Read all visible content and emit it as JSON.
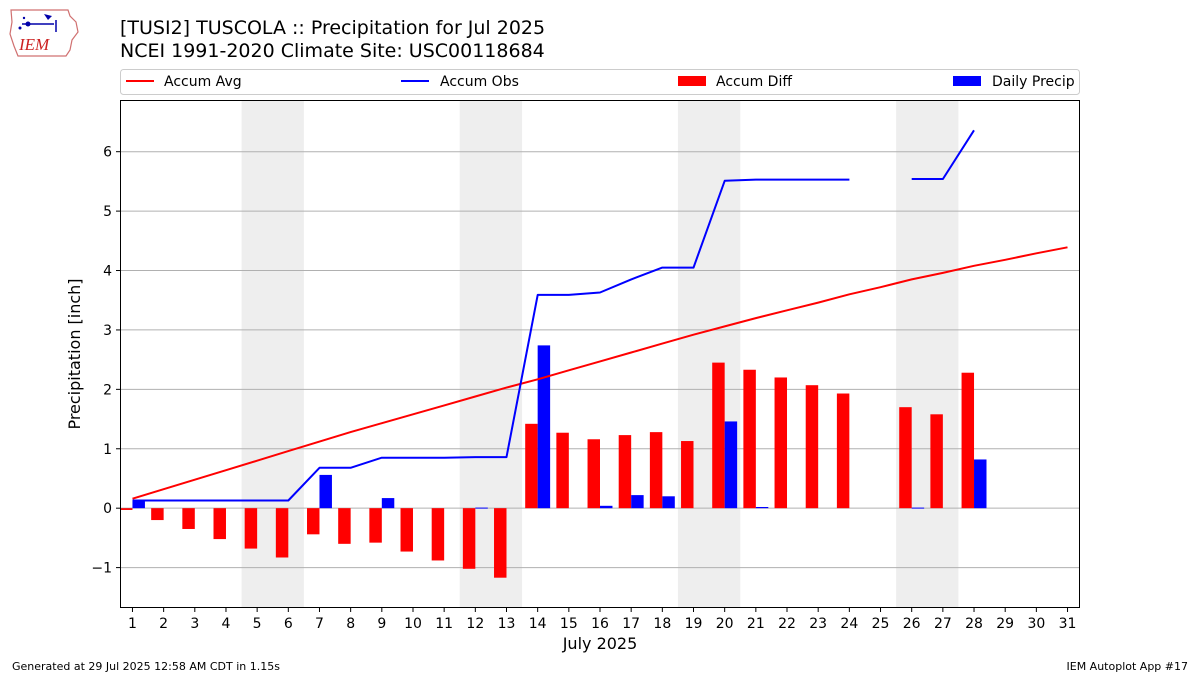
{
  "header": {
    "title_line1": "[TUSI2] TUSCOLA :: Precipitation for Jul 2025",
    "title_line2": "NCEI 1991-2020 Climate Site: USC00118684"
  },
  "logo": {
    "text": "IEM",
    "icon": "iem-iowa-logo"
  },
  "footer": {
    "left": "Generated at 29 Jul 2025 12:58 AM CDT in 1.15s",
    "right": "IEM Autoplot App #17"
  },
  "colors": {
    "avg": "#ff0000",
    "obs": "#0000ff",
    "diff": "#ff0000",
    "daily": "#0000ff",
    "weekend": "#eeeeee",
    "grid": "#b0b0b0"
  },
  "chart_data": {
    "type": "bar",
    "xlabel": "July 2025",
    "ylabel": "Precipitation [inch]",
    "x": [
      1,
      2,
      3,
      4,
      5,
      6,
      7,
      8,
      9,
      10,
      11,
      12,
      13,
      14,
      15,
      16,
      17,
      18,
      19,
      20,
      21,
      22,
      23,
      24,
      25,
      26,
      27,
      28,
      29,
      30,
      31
    ],
    "ylim": [
      -1.68,
      6.87
    ],
    "yticks": [
      -1,
      0,
      1,
      2,
      3,
      4,
      5,
      6
    ],
    "ytick_labels": [
      "−1",
      "0",
      "1",
      "2",
      "3",
      "4",
      "5",
      "6"
    ],
    "grid": "horizontal",
    "legend_placement": "top, above plot",
    "shaded_weekend_days": [
      [
        5,
        6
      ],
      [
        12,
        13
      ],
      [
        19,
        20
      ],
      [
        26,
        27
      ]
    ],
    "series": [
      {
        "name": "Accum Avg",
        "type": "line",
        "values": [
          0.16,
          0.32,
          0.48,
          0.64,
          0.8,
          0.96,
          1.12,
          1.28,
          1.43,
          1.58,
          1.73,
          1.88,
          2.03,
          2.17,
          2.32,
          2.47,
          2.62,
          2.77,
          2.92,
          3.06,
          3.2,
          3.33,
          3.46,
          3.6,
          3.72,
          3.85,
          3.96,
          4.08,
          4.18,
          4.29,
          4.39
        ]
      },
      {
        "name": "Accum Obs",
        "type": "line",
        "values": [
          0.13,
          0.13,
          0.13,
          0.13,
          0.13,
          0.13,
          0.68,
          0.68,
          0.85,
          0.85,
          0.85,
          0.86,
          0.86,
          3.59,
          3.59,
          3.63,
          3.85,
          4.05,
          4.05,
          5.51,
          5.53,
          5.53,
          5.53,
          5.53,
          null,
          5.54,
          5.54,
          6.36,
          null,
          null,
          null
        ]
      },
      {
        "name": "Accum Diff",
        "type": "bar",
        "values": [
          -0.03,
          -0.2,
          -0.35,
          -0.52,
          -0.68,
          -0.83,
          -0.44,
          -0.6,
          -0.58,
          -0.73,
          -0.88,
          -1.02,
          -1.17,
          1.42,
          1.27,
          1.16,
          1.23,
          1.28,
          1.13,
          2.45,
          2.33,
          2.2,
          2.07,
          1.93,
          null,
          1.7,
          1.58,
          2.28,
          null,
          null,
          null
        ]
      },
      {
        "name": "Daily Precip",
        "type": "bar",
        "values": [
          0.13,
          0,
          0,
          0,
          0,
          0,
          0.56,
          0,
          0.17,
          0,
          0,
          0.01,
          0,
          2.74,
          0,
          0.04,
          0.22,
          0.2,
          0,
          1.46,
          0.02,
          0,
          0,
          0,
          null,
          0.01,
          0,
          0.82,
          null,
          null,
          null
        ]
      }
    ]
  }
}
